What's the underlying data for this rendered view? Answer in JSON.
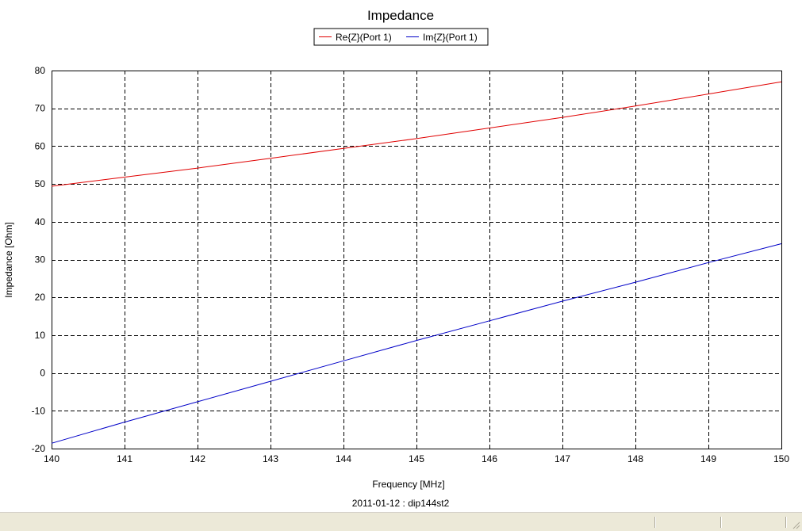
{
  "chart_data": {
    "type": "line",
    "title": "Impedance",
    "xlabel": "Frequency [MHz]",
    "ylabel": "Impedance [Ohm]",
    "footer": "2011-01-12 : dip144st2",
    "xlim": [
      140,
      150
    ],
    "ylim": [
      -20,
      80
    ],
    "xticks": [
      140,
      141,
      142,
      143,
      144,
      145,
      146,
      147,
      148,
      149,
      150
    ],
    "yticks": [
      -20,
      -10,
      0,
      10,
      20,
      30,
      40,
      50,
      60,
      70,
      80
    ],
    "grid": true,
    "legend_position": "top-center",
    "series": [
      {
        "name": "Re{Z}(Port 1)",
        "color": "#e00000",
        "x": [
          140,
          141,
          142,
          143,
          144,
          145,
          146,
          147,
          148,
          149,
          150
        ],
        "y": [
          49.4,
          51.8,
          54.2,
          56.8,
          59.4,
          62.0,
          64.8,
          67.6,
          70.6,
          73.8,
          77.0
        ]
      },
      {
        "name": "Im{Z}(Port 1)",
        "color": "#0000c8",
        "x": [
          140,
          141,
          142,
          143,
          144,
          145,
          146,
          147,
          148,
          149,
          150
        ],
        "y": [
          -18.6,
          -13.0,
          -7.6,
          -2.2,
          3.2,
          8.6,
          13.8,
          19.0,
          24.0,
          29.2,
          34.2
        ]
      }
    ]
  }
}
